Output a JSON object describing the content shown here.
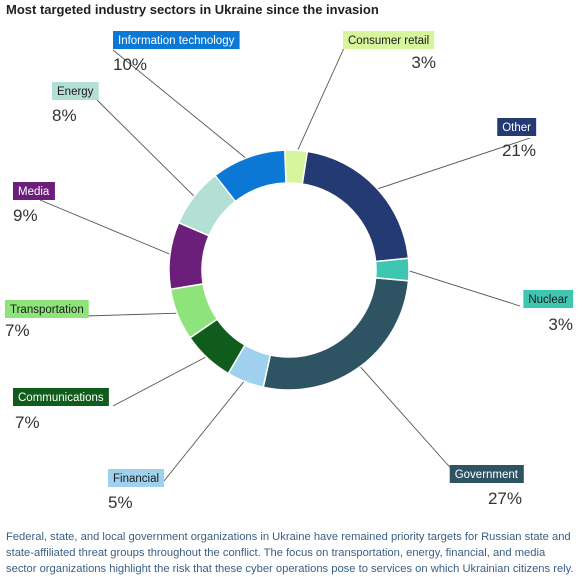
{
  "title": "Most targeted industry sectors in Ukraine since the invasion",
  "caption": "Federal, state, and local government organizations in Ukraine have remained priority targets for Russian state and state-affiliated threat groups throughout the conflict. The focus on transportation, energy, financial, and media sector organizations highlight the risk that these cyber operations pose to services on which Ukrainian citizens rely.",
  "chart_data": {
    "type": "pie",
    "donut": true,
    "title": "Most targeted industry sectors in Ukraine since the invasion",
    "slices": [
      {
        "label": "Consumer retail",
        "value": 3,
        "display": "3%",
        "color": "#d6f59c"
      },
      {
        "label": "Other",
        "value": 21,
        "display": "21%",
        "color": "#243a73"
      },
      {
        "label": "Nuclear",
        "value": 3,
        "display": "3%",
        "color": "#3fc6b1"
      },
      {
        "label": "Government",
        "value": 27,
        "display": "27%",
        "color": "#2e5463"
      },
      {
        "label": "Financial",
        "value": 5,
        "display": "5%",
        "color": "#9fd1ef"
      },
      {
        "label": "Communications",
        "value": 7,
        "display": "7%",
        "color": "#0f5c1c"
      },
      {
        "label": "Transportation",
        "value": 7,
        "display": "7%",
        "color": "#8ee37a"
      },
      {
        "label": "Media",
        "value": 9,
        "display": "9%",
        "color": "#6b1f7a"
      },
      {
        "label": "Energy",
        "value": 8,
        "display": "8%",
        "color": "#b3dfd4"
      },
      {
        "label": "Information technology",
        "value": 10,
        "display": "10%",
        "color": "#0a78d4"
      }
    ]
  }
}
